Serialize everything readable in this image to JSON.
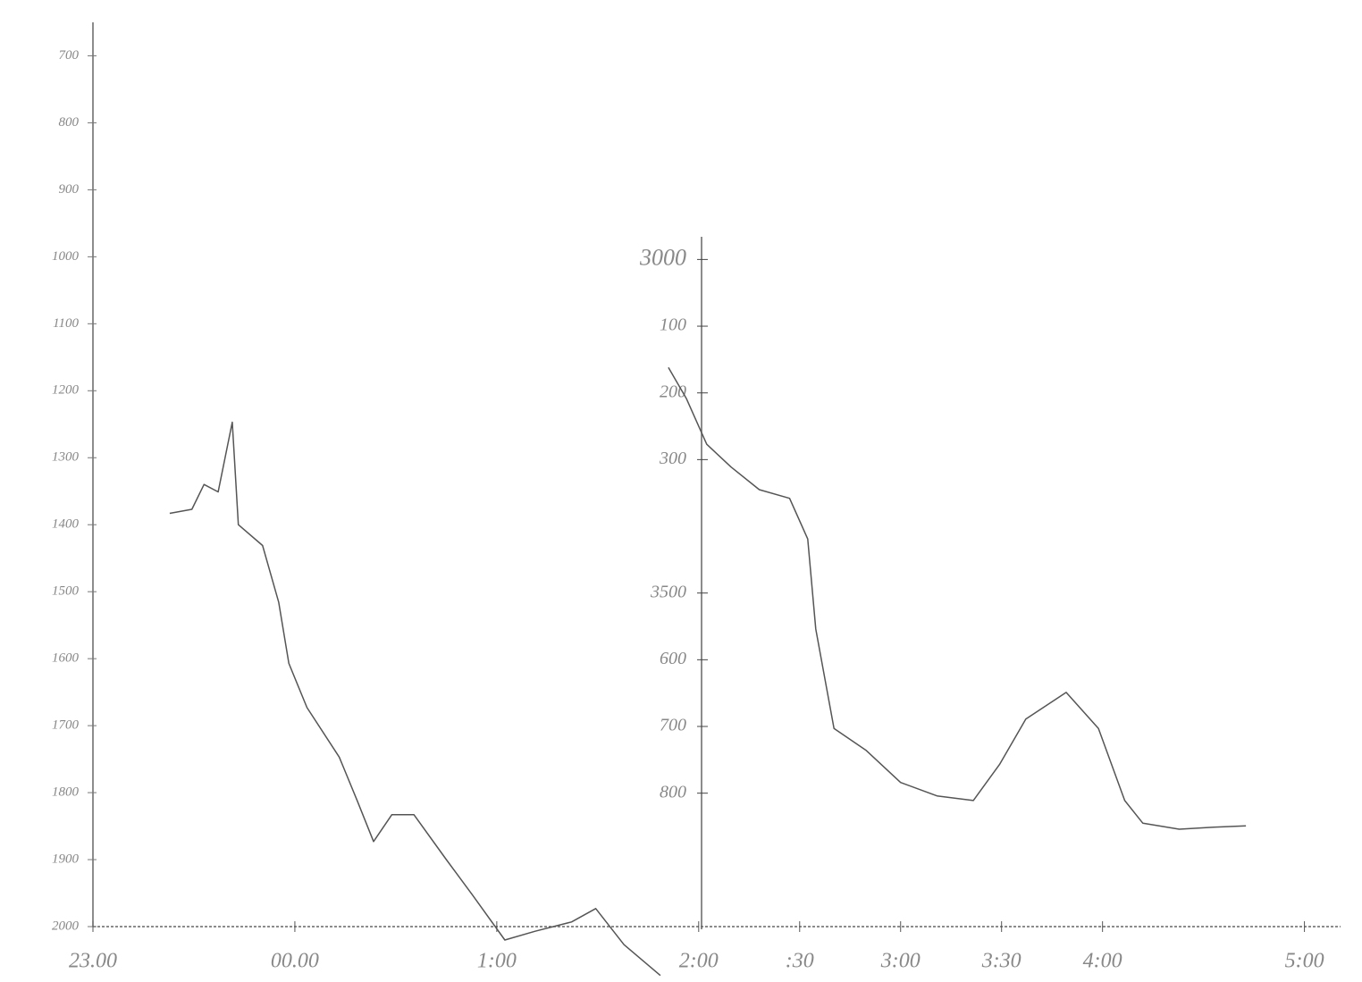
{
  "chart_data": {
    "type": "line",
    "xlim": [
      23,
      29.17
    ],
    "xticks": [
      {
        "value": 23,
        "label": "23.00"
      },
      {
        "value": 24,
        "label": "00.00"
      },
      {
        "value": 25,
        "label": "1:00"
      },
      {
        "value": 26,
        "label": "2:00"
      },
      {
        "value": 26.5,
        "label": ":30"
      },
      {
        "value": 27,
        "label": "3:00"
      },
      {
        "value": 27.5,
        "label": "3:30"
      },
      {
        "value": 28,
        "label": "4:00"
      },
      {
        "value": 29,
        "label": "5:00"
      }
    ],
    "ylim": [
      2000,
      650
    ],
    "yticks": [
      700,
      800,
      900,
      1000,
      1100,
      1200,
      1300,
      1400,
      1500,
      1600,
      1700,
      1800,
      1900,
      2000
    ],
    "y2lim": [
      4000,
      2966
    ],
    "y2ticks": [
      3000,
      {
        "value": 3100,
        "label": "100"
      },
      {
        "value": 3200,
        "label": "200"
      },
      {
        "value": 3300,
        "label": "300"
      },
      3500,
      {
        "value": 3600,
        "label": "600"
      },
      {
        "value": 3700,
        "label": "700"
      },
      {
        "value": 3800,
        "label": "800"
      }
    ],
    "series": [
      {
        "color": "#555555",
        "x": [
          23.38,
          23.49,
          23.55,
          23.62,
          23.69,
          23.72,
          23.84,
          23.92,
          23.97,
          24.06,
          24.22,
          24.31,
          24.39,
          24.48,
          24.59,
          24.75,
          24.88,
          25.04,
          25.19,
          25.37,
          25.49,
          25.63,
          25.81
        ],
        "values": [
          1383,
          1377,
          1340,
          1351,
          1247,
          1400,
          1431,
          1516,
          1607,
          1673,
          1747,
          1813,
          1873,
          1833,
          1833,
          1900,
          1953,
          2020,
          2007,
          1993,
          1973,
          2027,
          2073
        ]
      },
      {
        "color": "#555555",
        "axis": "y2",
        "x": [
          25.85,
          25.94,
          26.04,
          26.16,
          26.3,
          26.45,
          26.54,
          26.58,
          26.67,
          26.83,
          27.0,
          27.18,
          27.36,
          27.49,
          27.62,
          27.82,
          27.98,
          28.11,
          28.2,
          28.38,
          28.55,
          28.71
        ],
        "values": [
          3162,
          3209,
          3277,
          3311,
          3345,
          3358,
          3419,
          3554,
          3703,
          3736,
          3784,
          3804,
          3811,
          3757,
          3689,
          3649,
          3703,
          3811,
          3845,
          3854,
          3851,
          3849
        ]
      }
    ]
  }
}
